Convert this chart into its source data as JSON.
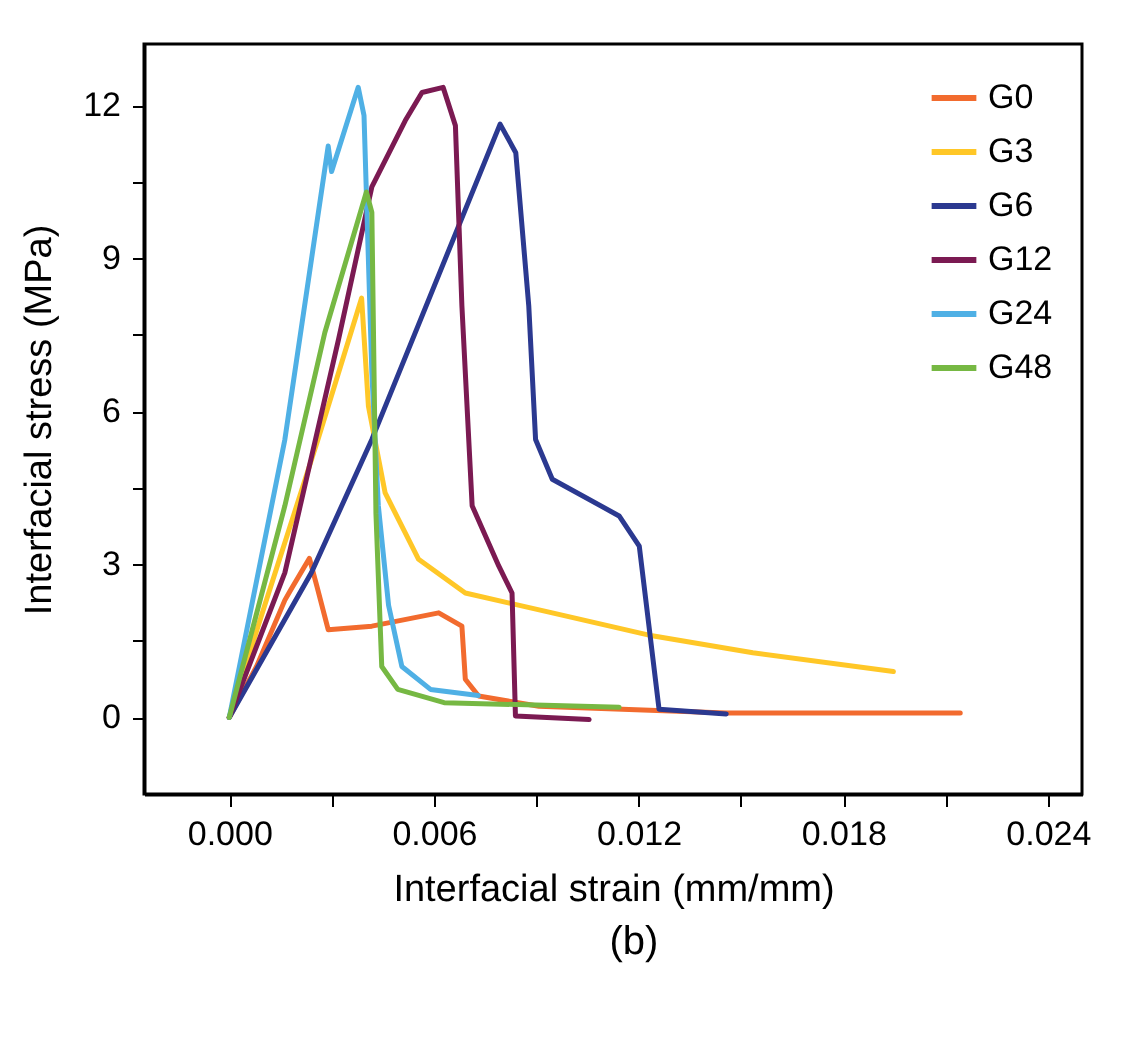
{
  "chart_data": {
    "type": "line",
    "xlabel": "Interfacial strain (mm/mm)",
    "ylabel": "Interfacial stress (MPa)",
    "annotations": [
      "(b)"
    ],
    "xlim": [
      -0.0025,
      0.025
    ],
    "ylim": [
      -1.5,
      13.2
    ],
    "xticks": [
      {
        "value": 0,
        "label": "0.000"
      },
      {
        "value": 0.003,
        "label": null
      },
      {
        "value": 0.006,
        "label": "0.006"
      },
      {
        "value": 0.009,
        "label": null
      },
      {
        "value": 0.012,
        "label": "0.012"
      },
      {
        "value": 0.015,
        "label": null
      },
      {
        "value": 0.018,
        "label": "0.018"
      },
      {
        "value": 0.021,
        "label": null
      },
      {
        "value": 0.024,
        "label": "0.024"
      }
    ],
    "yticks": [
      0,
      {
        "value": 1.5,
        "label": null
      },
      3,
      {
        "value": 4.5,
        "label": null
      },
      6,
      {
        "value": 7.5,
        "label": null
      },
      9,
      {
        "value": 10.5,
        "label": null
      },
      12
    ],
    "grid": false,
    "legend": "top right",
    "marker": "none",
    "line_style": "solid",
    "series": [
      {
        "name": "G0",
        "color": "#f26b2e",
        "x": [
          0,
          0.0008,
          0.00163,
          0.0018,
          0.00235,
          0.00257,
          0.0029,
          0.00418,
          0.00614,
          0.00682,
          0.00692,
          0.00731,
          0.00908,
          0.01457,
          0.02143
        ],
        "values": [
          0,
          1.0,
          2.3,
          2.5,
          3.12,
          2.57,
          1.72,
          1.79,
          2.05,
          1.79,
          0.75,
          0.42,
          0.22,
          0.09,
          0.09
        ]
      },
      {
        "name": "G3",
        "color": "#ffc727",
        "x": [
          0,
          0.00104,
          0.0026,
          0.00388,
          0.00408,
          0.00457,
          0.00555,
          0.00692,
          0.00947,
          0.0124,
          0.01535,
          0.01947
        ],
        "values": [
          0,
          2.2,
          5.45,
          8.22,
          6.1,
          4.4,
          3.1,
          2.44,
          2.05,
          1.6,
          1.27,
          0.9
        ]
      },
      {
        "name": "G6",
        "color": "#2b3990",
        "x": [
          0,
          0.00241,
          0.00418,
          0.00794,
          0.0084,
          0.00878,
          0.00898,
          0.00947,
          0.01143,
          0.01202,
          0.0126,
          0.01457
        ],
        "values": [
          0,
          2.84,
          5.45,
          11.63,
          11.07,
          8.07,
          5.45,
          4.67,
          3.95,
          3.36,
          0.16,
          0.07
        ]
      },
      {
        "name": "G12",
        "color": "#7b1a52",
        "x": [
          0,
          0.00163,
          0.0032,
          0.00418,
          0.00516,
          0.00565,
          0.00627,
          0.00663,
          0.00682,
          0.00712,
          0.0079,
          0.00829,
          0.00839,
          0.01055
        ],
        "values": [
          0,
          2.84,
          7.4,
          10.4,
          11.7,
          12.25,
          12.35,
          11.6,
          8.07,
          4.15,
          2.97,
          2.44,
          0.03,
          -0.04
        ]
      },
      {
        "name": "G24",
        "color": "#4fb0e5",
        "x": [
          0,
          0.00163,
          0.0029,
          0.003,
          0.00378,
          0.00395,
          0.00418,
          0.00437,
          0.00467,
          0.00506,
          0.0059,
          0.0073
        ],
        "values": [
          0,
          5.45,
          11.2,
          10.7,
          12.35,
          11.8,
          6.76,
          4.15,
          2.2,
          1.0,
          0.55,
          0.43
        ]
      },
      {
        "name": "G48",
        "color": "#76b843",
        "x": [
          0,
          0.00163,
          0.0028,
          0.00402,
          0.00418,
          0.0043,
          0.00447,
          0.00494,
          0.0063,
          0.01143
        ],
        "values": [
          0,
          4.15,
          7.54,
          10.3,
          9.9,
          4.0,
          1.0,
          0.55,
          0.29,
          0.2
        ]
      }
    ]
  }
}
